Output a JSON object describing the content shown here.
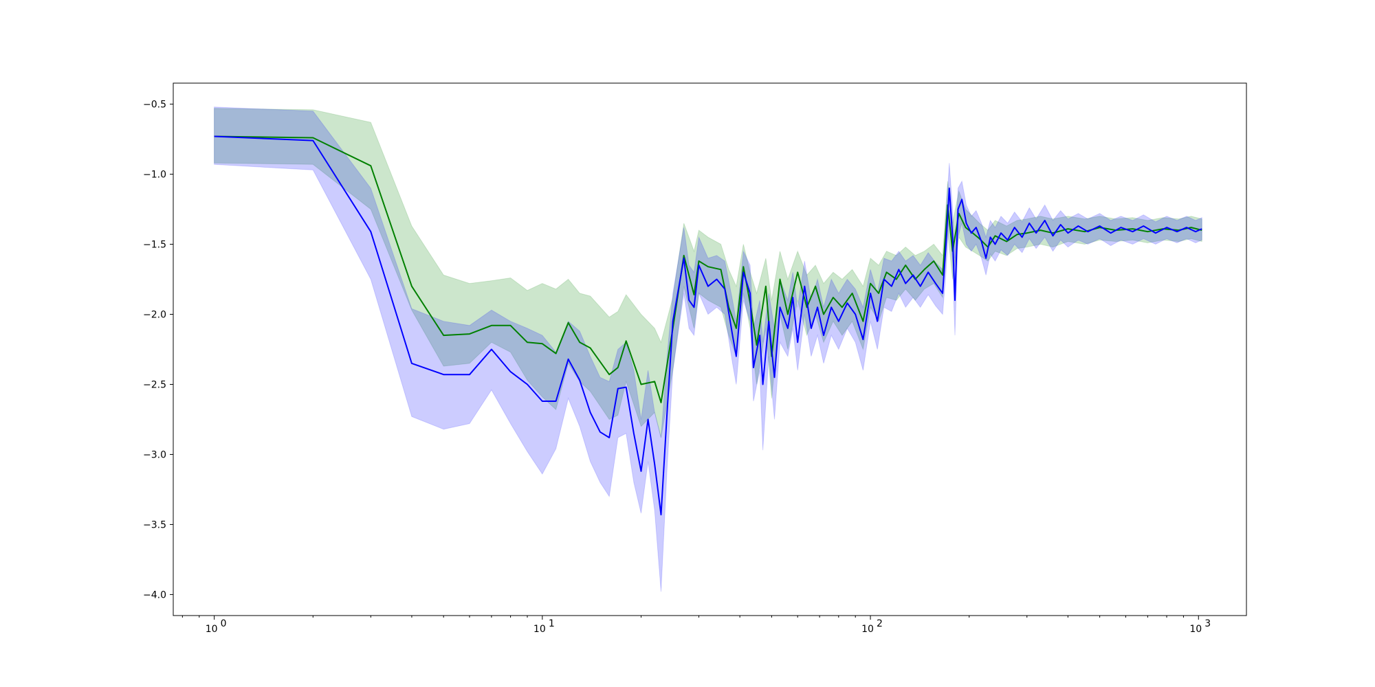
{
  "chart_data": {
    "type": "line",
    "title": "",
    "xlabel": "",
    "ylabel": "",
    "x_scale": "log",
    "xlim": [
      0.75,
      1400
    ],
    "ylim": [
      -4.15,
      -0.35
    ],
    "grid": false,
    "legend": "none",
    "x_tick_labels": [
      {
        "value": 1,
        "base": "10",
        "exp": "0"
      },
      {
        "value": 10,
        "base": "10",
        "exp": "1"
      },
      {
        "value": 100,
        "base": "10",
        "exp": "2"
      },
      {
        "value": 1000,
        "base": "10",
        "exp": "3"
      }
    ],
    "y_ticks": [
      -0.5,
      -1.0,
      -1.5,
      -2.0,
      -2.5,
      -3.0,
      -3.5,
      -4.0
    ],
    "y_tick_labels": [
      "−0.5",
      "−1.0",
      "−1.5",
      "−2.0",
      "−2.5",
      "−3.0",
      "−3.5",
      "−4.0"
    ],
    "series": [
      {
        "color": "#008000",
        "band_color": "#008000",
        "band_opacity": 0.2,
        "points": [
          [
            1,
            -0.73,
            -0.53,
            -0.92
          ],
          [
            2,
            -0.74,
            -0.54,
            -0.93
          ],
          [
            3,
            -0.94,
            -0.63,
            -1.25
          ],
          [
            4,
            -1.8,
            -1.37,
            -1.97
          ],
          [
            5,
            -2.15,
            -1.72,
            -2.37
          ],
          [
            6,
            -2.14,
            -1.78,
            -2.35
          ],
          [
            7,
            -2.08,
            -1.76,
            -2.2
          ],
          [
            8,
            -2.08,
            -1.74,
            -2.27
          ],
          [
            9,
            -2.2,
            -1.83,
            -2.47
          ],
          [
            10,
            -2.21,
            -1.78,
            -2.59
          ],
          [
            11,
            -2.28,
            -1.82,
            -2.68
          ],
          [
            12,
            -2.06,
            -1.75,
            -2.35
          ],
          [
            13,
            -2.2,
            -1.85,
            -2.48
          ],
          [
            14,
            -2.24,
            -1.87,
            -2.55
          ],
          [
            16,
            -2.43,
            -2.02,
            -2.75
          ],
          [
            17,
            -2.38,
            -1.98,
            -2.72
          ],
          [
            18,
            -2.19,
            -1.86,
            -2.48
          ],
          [
            20,
            -2.5,
            -2.0,
            -2.8
          ],
          [
            22,
            -2.48,
            -2.1,
            -2.7
          ],
          [
            23,
            -2.63,
            -2.2,
            -2.88
          ],
          [
            25,
            -2.1,
            -1.88,
            -2.4
          ],
          [
            27,
            -1.58,
            -1.35,
            -1.8
          ],
          [
            29,
            -1.86,
            -1.55,
            -2.1
          ],
          [
            30,
            -1.62,
            -1.4,
            -1.85
          ],
          [
            32,
            -1.66,
            -1.45,
            -1.9
          ],
          [
            35,
            -1.68,
            -1.5,
            -1.95
          ],
          [
            37,
            -1.95,
            -1.68,
            -2.15
          ],
          [
            39,
            -2.1,
            -1.8,
            -2.3
          ],
          [
            41,
            -1.66,
            -1.5,
            -1.85
          ],
          [
            43,
            -1.92,
            -1.7,
            -2.1
          ],
          [
            45,
            -2.22,
            -1.85,
            -2.5
          ],
          [
            48,
            -1.8,
            -1.6,
            -2.1
          ],
          [
            50,
            -2.3,
            -1.9,
            -2.6
          ],
          [
            53,
            -1.75,
            -1.55,
            -2.0
          ],
          [
            56,
            -2.0,
            -1.75,
            -2.25
          ],
          [
            60,
            -1.7,
            -1.55,
            -1.9
          ],
          [
            64,
            -1.95,
            -1.72,
            -2.15
          ],
          [
            68,
            -1.8,
            -1.65,
            -2.0
          ],
          [
            72,
            -2.0,
            -1.78,
            -2.2
          ],
          [
            77,
            -1.88,
            -1.7,
            -2.05
          ],
          [
            82,
            -1.95,
            -1.75,
            -2.15
          ],
          [
            88,
            -1.85,
            -1.68,
            -2.05
          ],
          [
            95,
            -2.05,
            -1.8,
            -2.25
          ],
          [
            100,
            -1.78,
            -1.6,
            -1.95
          ],
          [
            106,
            -1.85,
            -1.65,
            -2.05
          ],
          [
            112,
            -1.7,
            -1.55,
            -1.88
          ],
          [
            120,
            -1.75,
            -1.58,
            -1.9
          ],
          [
            128,
            -1.65,
            -1.52,
            -1.82
          ],
          [
            137,
            -1.75,
            -1.58,
            -1.9
          ],
          [
            146,
            -1.68,
            -1.55,
            -1.82
          ],
          [
            156,
            -1.62,
            -1.5,
            -1.78
          ],
          [
            166,
            -1.72,
            -1.58,
            -1.88
          ],
          [
            172,
            -1.22,
            -1.05,
            -1.4
          ],
          [
            178,
            -1.55,
            -1.35,
            -1.75
          ],
          [
            186,
            -1.28,
            -1.12,
            -1.45
          ],
          [
            195,
            -1.38,
            -1.25,
            -1.52
          ],
          [
            205,
            -1.42,
            -1.3,
            -1.55
          ],
          [
            215,
            -1.46,
            -1.35,
            -1.58
          ],
          [
            228,
            -1.52,
            -1.4,
            -1.62
          ],
          [
            240,
            -1.44,
            -1.33,
            -1.55
          ],
          [
            260,
            -1.48,
            -1.37,
            -1.58
          ],
          [
            280,
            -1.43,
            -1.33,
            -1.53
          ],
          [
            300,
            -1.42,
            -1.32,
            -1.52
          ],
          [
            330,
            -1.4,
            -1.3,
            -1.5
          ],
          [
            360,
            -1.42,
            -1.32,
            -1.52
          ],
          [
            400,
            -1.39,
            -1.3,
            -1.48
          ],
          [
            450,
            -1.41,
            -1.32,
            -1.5
          ],
          [
            500,
            -1.38,
            -1.3,
            -1.47
          ],
          [
            560,
            -1.4,
            -1.32,
            -1.48
          ],
          [
            630,
            -1.39,
            -1.31,
            -1.47
          ],
          [
            700,
            -1.41,
            -1.33,
            -1.49
          ],
          [
            780,
            -1.39,
            -1.31,
            -1.47
          ],
          [
            870,
            -1.4,
            -1.32,
            -1.48
          ],
          [
            950,
            -1.38,
            -1.3,
            -1.46
          ],
          [
            1024,
            -1.4,
            -1.32,
            -1.48
          ]
        ]
      },
      {
        "color": "#0000ff",
        "band_color": "#0000ff",
        "band_opacity": 0.2,
        "points": [
          [
            1,
            -0.73,
            -0.52,
            -0.93
          ],
          [
            2,
            -0.76,
            -0.55,
            -0.97
          ],
          [
            3,
            -1.41,
            -1.1,
            -1.75
          ],
          [
            4,
            -2.35,
            -1.96,
            -2.73
          ],
          [
            5,
            -2.43,
            -2.05,
            -2.82
          ],
          [
            6,
            -2.43,
            -2.08,
            -2.78
          ],
          [
            7,
            -2.25,
            -1.97,
            -2.54
          ],
          [
            8,
            -2.41,
            -2.05,
            -2.78
          ],
          [
            9,
            -2.5,
            -2.1,
            -2.98
          ],
          [
            10,
            -2.62,
            -2.15,
            -3.14
          ],
          [
            11,
            -2.62,
            -2.27,
            -2.96
          ],
          [
            12,
            -2.32,
            -2.05,
            -2.6
          ],
          [
            13,
            -2.47,
            -2.12,
            -2.8
          ],
          [
            14,
            -2.7,
            -2.3,
            -3.05
          ],
          [
            15,
            -2.84,
            -2.45,
            -3.2
          ],
          [
            16,
            -2.88,
            -2.48,
            -3.3
          ],
          [
            17,
            -2.53,
            -2.25,
            -2.88
          ],
          [
            18,
            -2.52,
            -2.2,
            -2.85
          ],
          [
            19,
            -2.85,
            -2.4,
            -3.2
          ],
          [
            20,
            -3.12,
            -2.75,
            -3.42
          ],
          [
            21,
            -2.75,
            -2.4,
            -3.05
          ],
          [
            22,
            -3.07,
            -2.7,
            -3.4
          ],
          [
            23,
            -3.43,
            -2.88,
            -3.98
          ],
          [
            24,
            -2.7,
            -2.3,
            -3.1
          ],
          [
            25,
            -2.05,
            -1.85,
            -2.4
          ],
          [
            27,
            -1.6,
            -1.38,
            -1.85
          ],
          [
            28,
            -1.9,
            -1.65,
            -2.1
          ],
          [
            29,
            -1.95,
            -1.7,
            -2.15
          ],
          [
            30,
            -1.65,
            -1.45,
            -1.85
          ],
          [
            32,
            -1.8,
            -1.6,
            -2.0
          ],
          [
            34,
            -1.75,
            -1.58,
            -1.95
          ],
          [
            36,
            -1.82,
            -1.62,
            -2.0
          ],
          [
            38,
            -2.15,
            -1.9,
            -2.35
          ],
          [
            39,
            -2.3,
            -2.05,
            -2.5
          ],
          [
            41,
            -1.7,
            -1.55,
            -1.9
          ],
          [
            43,
            -1.85,
            -1.65,
            -2.05
          ],
          [
            44,
            -2.38,
            -2.1,
            -2.62
          ],
          [
            46,
            -2.15,
            -1.9,
            -2.4
          ],
          [
            47,
            -2.5,
            -2.2,
            -2.97
          ],
          [
            49,
            -2.05,
            -1.85,
            -2.3
          ],
          [
            51,
            -2.45,
            -2.1,
            -2.75
          ],
          [
            53,
            -1.95,
            -1.75,
            -2.2
          ],
          [
            56,
            -2.1,
            -1.9,
            -2.3
          ],
          [
            58,
            -1.88,
            -1.7,
            -2.1
          ],
          [
            60,
            -2.2,
            -1.95,
            -2.4
          ],
          [
            63,
            -1.8,
            -1.62,
            -2.0
          ],
          [
            66,
            -2.1,
            -1.9,
            -2.3
          ],
          [
            69,
            -1.95,
            -1.75,
            -2.15
          ],
          [
            72,
            -2.15,
            -1.95,
            -2.35
          ],
          [
            76,
            -1.95,
            -1.75,
            -2.15
          ],
          [
            80,
            -2.05,
            -1.85,
            -2.25
          ],
          [
            85,
            -1.92,
            -1.75,
            -2.1
          ],
          [
            90,
            -2.0,
            -1.82,
            -2.2
          ],
          [
            95,
            -2.18,
            -1.95,
            -2.4
          ],
          [
            100,
            -1.85,
            -1.68,
            -2.05
          ],
          [
            105,
            -2.05,
            -1.85,
            -2.25
          ],
          [
            110,
            -1.75,
            -1.6,
            -1.95
          ],
          [
            116,
            -1.8,
            -1.62,
            -1.98
          ],
          [
            122,
            -1.68,
            -1.55,
            -1.85
          ],
          [
            128,
            -1.78,
            -1.62,
            -1.95
          ],
          [
            135,
            -1.72,
            -1.58,
            -1.88
          ],
          [
            142,
            -1.8,
            -1.65,
            -1.95
          ],
          [
            150,
            -1.7,
            -1.56,
            -1.86
          ],
          [
            158,
            -1.78,
            -1.63,
            -1.94
          ],
          [
            166,
            -1.85,
            -1.68,
            -2.0
          ],
          [
            170,
            -1.5,
            -1.3,
            -1.7
          ],
          [
            174,
            -1.1,
            -0.92,
            -1.3
          ],
          [
            178,
            -1.45,
            -1.25,
            -1.65
          ],
          [
            181,
            -1.9,
            -1.6,
            -2.15
          ],
          [
            185,
            -1.25,
            -1.1,
            -1.45
          ],
          [
            190,
            -1.18,
            -1.05,
            -1.35
          ],
          [
            196,
            -1.35,
            -1.22,
            -1.5
          ],
          [
            203,
            -1.42,
            -1.3,
            -1.55
          ],
          [
            210,
            -1.38,
            -1.26,
            -1.5
          ],
          [
            218,
            -1.48,
            -1.35,
            -1.6
          ],
          [
            225,
            -1.6,
            -1.45,
            -1.72
          ],
          [
            232,
            -1.45,
            -1.33,
            -1.57
          ],
          [
            240,
            -1.5,
            -1.38,
            -1.62
          ],
          [
            250,
            -1.42,
            -1.3,
            -1.54
          ],
          [
            262,
            -1.47,
            -1.35,
            -1.58
          ],
          [
            275,
            -1.38,
            -1.27,
            -1.5
          ],
          [
            290,
            -1.45,
            -1.34,
            -1.56
          ],
          [
            305,
            -1.35,
            -1.24,
            -1.46
          ],
          [
            320,
            -1.42,
            -1.32,
            -1.53
          ],
          [
            340,
            -1.33,
            -1.22,
            -1.45
          ],
          [
            360,
            -1.44,
            -1.33,
            -1.55
          ],
          [
            380,
            -1.36,
            -1.26,
            -1.47
          ],
          [
            400,
            -1.42,
            -1.32,
            -1.52
          ],
          [
            430,
            -1.37,
            -1.28,
            -1.47
          ],
          [
            460,
            -1.41,
            -1.32,
            -1.5
          ],
          [
            500,
            -1.37,
            -1.28,
            -1.46
          ],
          [
            540,
            -1.42,
            -1.33,
            -1.51
          ],
          [
            580,
            -1.38,
            -1.3,
            -1.47
          ],
          [
            630,
            -1.41,
            -1.33,
            -1.5
          ],
          [
            680,
            -1.37,
            -1.29,
            -1.46
          ],
          [
            740,
            -1.42,
            -1.34,
            -1.5
          ],
          [
            800,
            -1.38,
            -1.3,
            -1.46
          ],
          [
            860,
            -1.41,
            -1.33,
            -1.49
          ],
          [
            920,
            -1.38,
            -1.3,
            -1.46
          ],
          [
            980,
            -1.41,
            -1.33,
            -1.49
          ],
          [
            1024,
            -1.39,
            -1.31,
            -1.47
          ]
        ]
      }
    ]
  }
}
